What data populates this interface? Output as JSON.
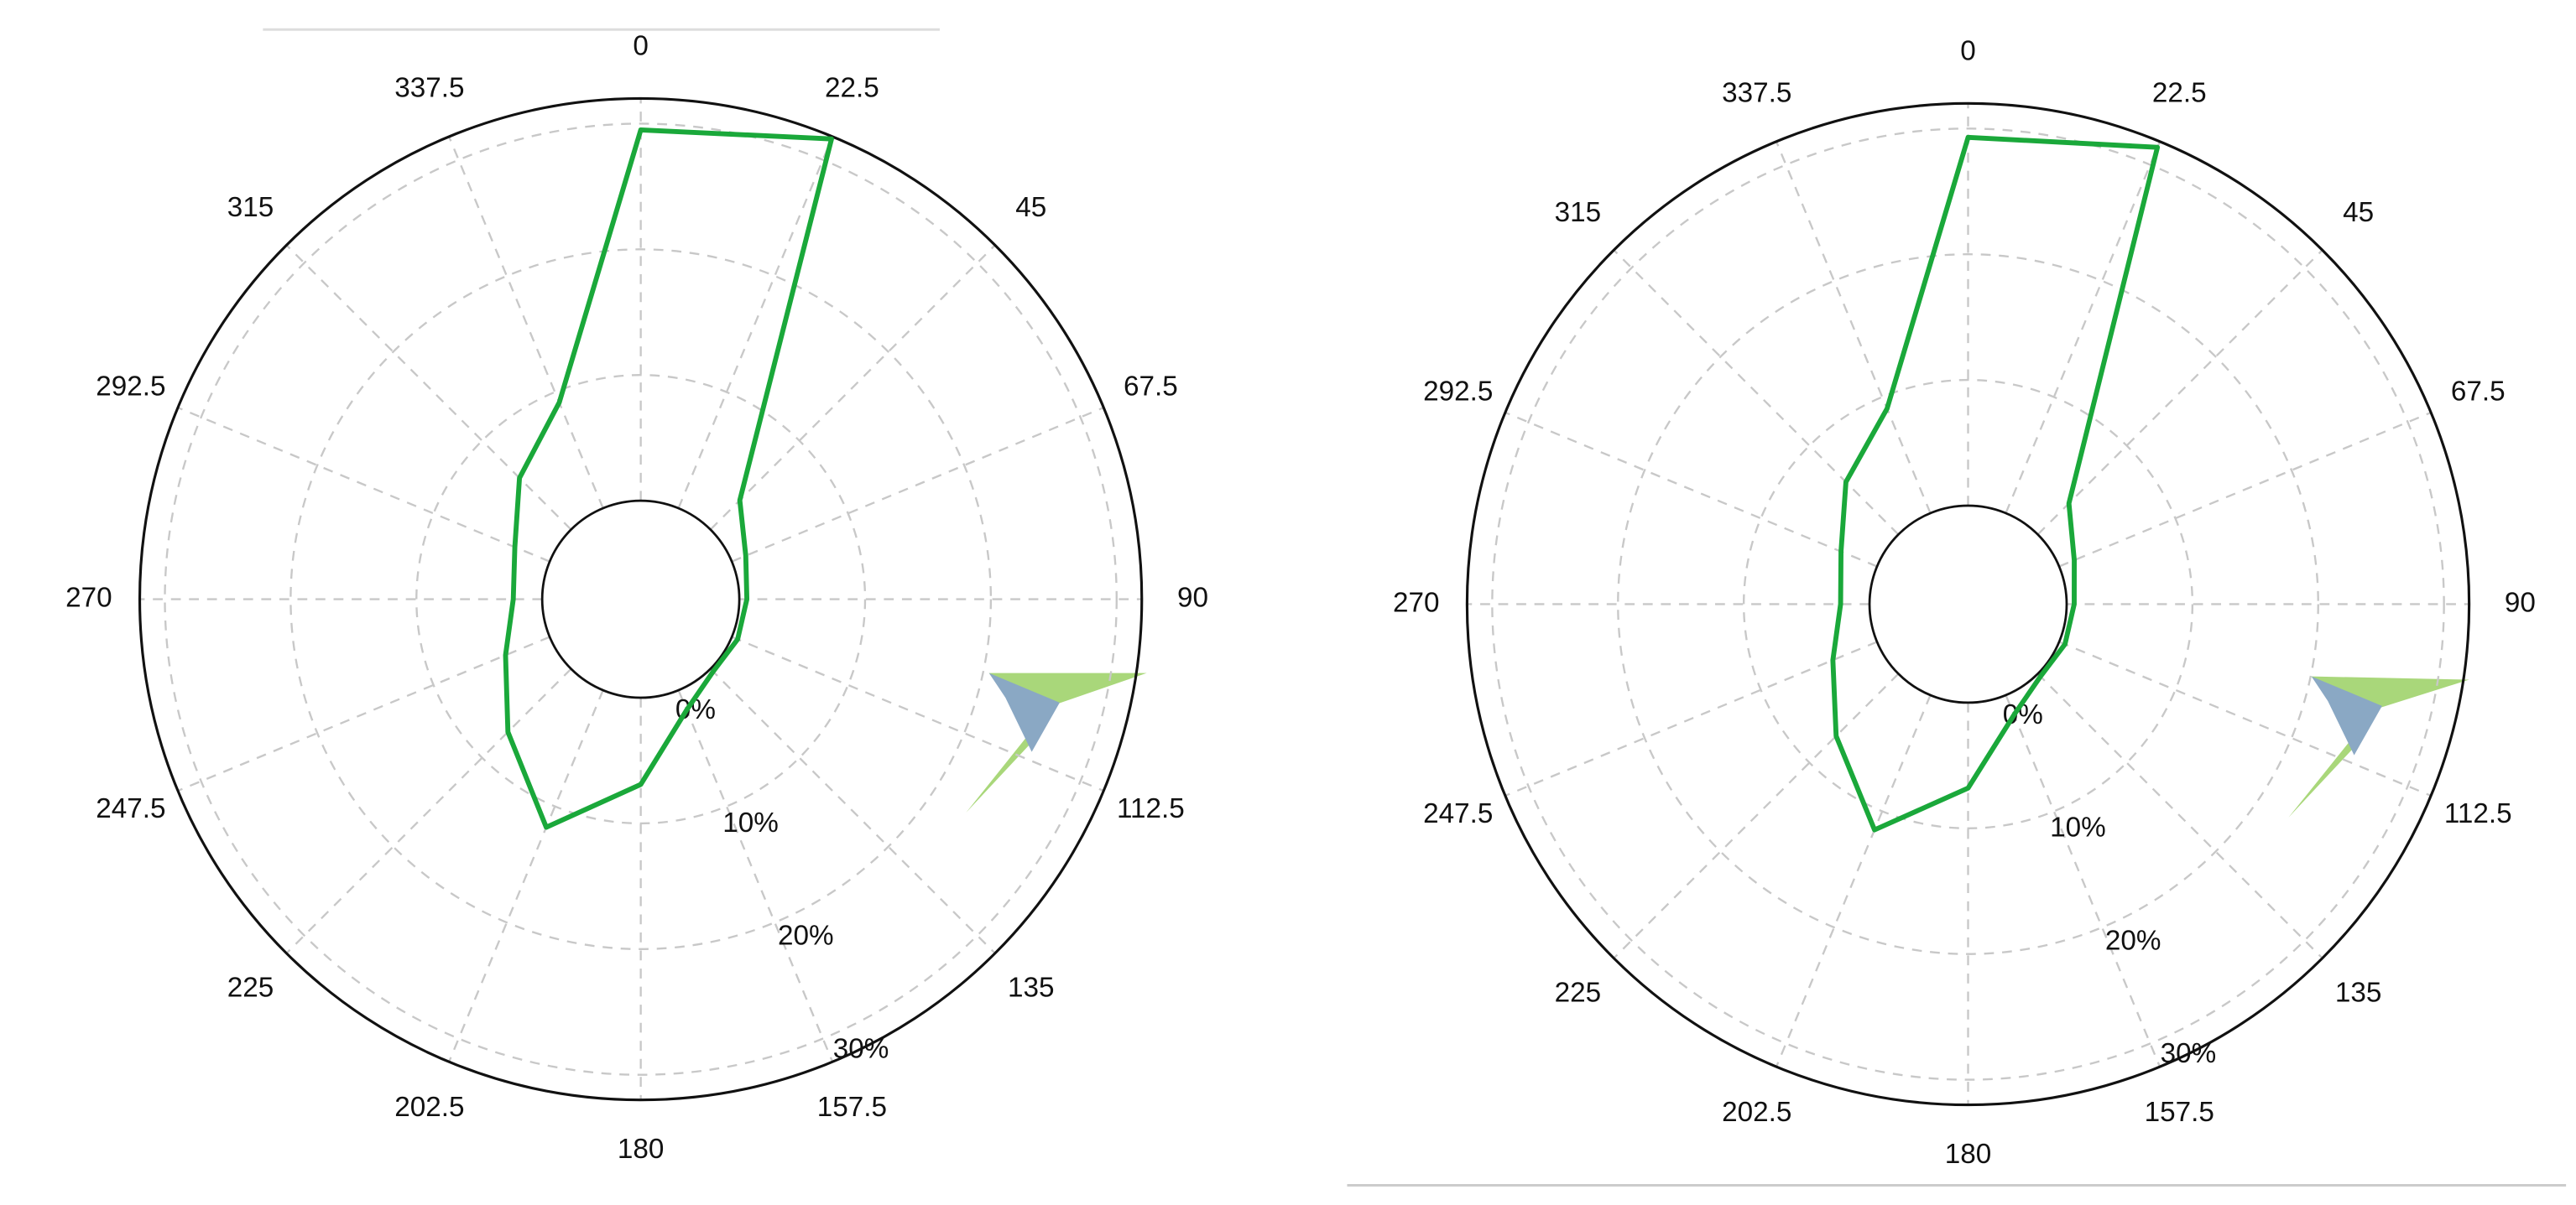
{
  "chart_data": [
    {
      "type": "polar",
      "theta": [
        0,
        22.5,
        45,
        67.5,
        90,
        112.5,
        135,
        157.5,
        180,
        202.5,
        225,
        247.5,
        270,
        292.5,
        315,
        337.5
      ],
      "rlim": [
        0,
        32
      ],
      "rticks": [
        {
          "value": 0,
          "label": "0%"
        },
        {
          "value": 10,
          "label": "10%"
        },
        {
          "value": 20,
          "label": "20%"
        },
        {
          "value": 30,
          "label": "30%"
        }
      ],
      "grid": true,
      "series": [
        {
          "color": "#1aa83a",
          "values": [
            29.5,
            31.8,
            3.3,
            1.2,
            0.6,
            0.5,
            0.3,
            1.7,
            6.9,
            11.8,
            7.1,
            3.8,
            2.3,
            3,
            5.8,
            9.1
          ]
        }
      ]
    },
    {
      "type": "polar",
      "theta": [
        0,
        22.5,
        45,
        67.5,
        90,
        112.5,
        135,
        157.5,
        180,
        202.5,
        225,
        247.5,
        270,
        292.5,
        315,
        337.5
      ],
      "rlim": [
        0,
        32
      ],
      "rticks": [
        {
          "value": 0,
          "label": "0%"
        },
        {
          "value": 10,
          "label": "10%"
        },
        {
          "value": 20,
          "label": "20%"
        },
        {
          "value": 30,
          "label": "30%"
        }
      ],
      "grid": true,
      "series": [
        {
          "color": "#1aa83a",
          "values": [
            29.3,
            31.5,
            3.5,
            1.3,
            0.6,
            0.5,
            0.3,
            1.7,
            6.8,
            11.6,
            7.0,
            3.8,
            2.3,
            3.1,
            5.9,
            9.0
          ]
        }
      ]
    }
  ]
}
